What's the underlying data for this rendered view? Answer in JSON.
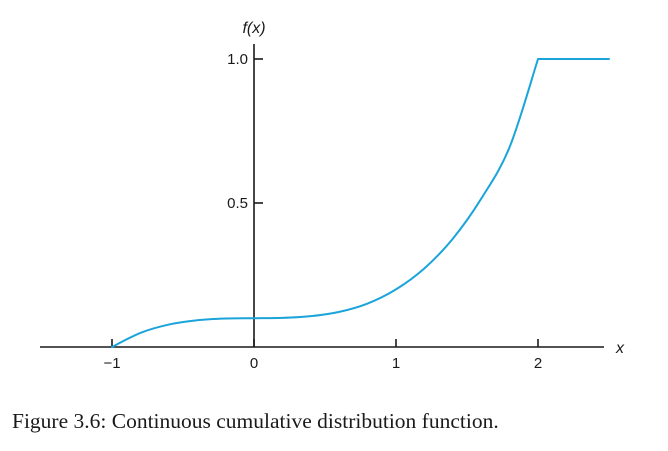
{
  "chart_data": {
    "type": "line",
    "xlabel": "x",
    "ylabel": "f(x)",
    "xlim": [
      -1.5,
      2.5
    ],
    "ylim": [
      0,
      1.0
    ],
    "x_ticks": [
      -1,
      0,
      1,
      2
    ],
    "x_tick_labels": [
      "−1",
      "0",
      "1",
      "2"
    ],
    "y_ticks": [
      0.5,
      1.0
    ],
    "y_tick_labels": [
      "0.5",
      "1.0"
    ],
    "grid": false,
    "line_color": "#1ba4d9",
    "series": [
      {
        "x": [
          -1.0,
          -0.8,
          -0.6,
          -0.4,
          -0.2,
          0.0,
          0.2,
          0.4,
          0.6,
          0.8,
          1.0,
          1.2,
          1.4,
          1.6,
          1.8,
          2.0,
          2.25,
          2.5
        ],
        "values": [
          0.0,
          0.049,
          0.078,
          0.093,
          0.099,
          0.1,
          0.101,
          0.107,
          0.122,
          0.151,
          0.2,
          0.273,
          0.376,
          0.515,
          0.694,
          1.0,
          1.0,
          1.0
        ]
      }
    ]
  },
  "caption": "Figure 3.6: Continuous cumulative distribution function."
}
